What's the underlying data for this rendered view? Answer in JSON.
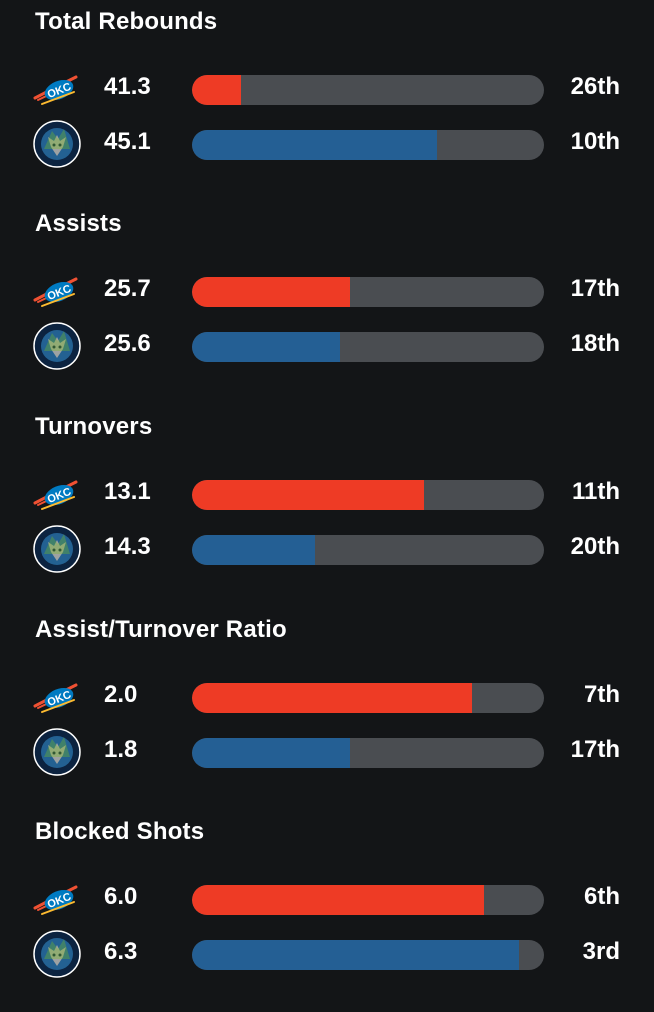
{
  "teams": [
    {
      "logo_icon": "okc-thunder-logo-icon",
      "color": "#ee3b25"
    },
    {
      "logo_icon": "minnesota-timberwolves-logo-icon",
      "color": "#245f94"
    }
  ],
  "stats": [
    {
      "title": "Total Rebounds",
      "rows": [
        {
          "value": "41.3",
          "rank": "26th",
          "fill_pct": 14
        },
        {
          "value": "45.1",
          "rank": "10th",
          "fill_pct": 69.5
        }
      ]
    },
    {
      "title": "Assists",
      "rows": [
        {
          "value": "25.7",
          "rank": "17th",
          "fill_pct": 45
        },
        {
          "value": "25.6",
          "rank": "18th",
          "fill_pct": 42
        }
      ]
    },
    {
      "title": "Turnovers",
      "rows": [
        {
          "value": "13.1",
          "rank": "11th",
          "fill_pct": 66
        },
        {
          "value": "14.3",
          "rank": "20th",
          "fill_pct": 35
        }
      ]
    },
    {
      "title": "Assist/Turnover Ratio",
      "rows": [
        {
          "value": "2.0",
          "rank": "7th",
          "fill_pct": 79.5
        },
        {
          "value": "1.8",
          "rank": "17th",
          "fill_pct": 45
        }
      ]
    },
    {
      "title": "Blocked Shots",
      "rows": [
        {
          "value": "6.0",
          "rank": "6th",
          "fill_pct": 83
        },
        {
          "value": "6.3",
          "rank": "3rd",
          "fill_pct": 93
        }
      ]
    }
  ]
}
